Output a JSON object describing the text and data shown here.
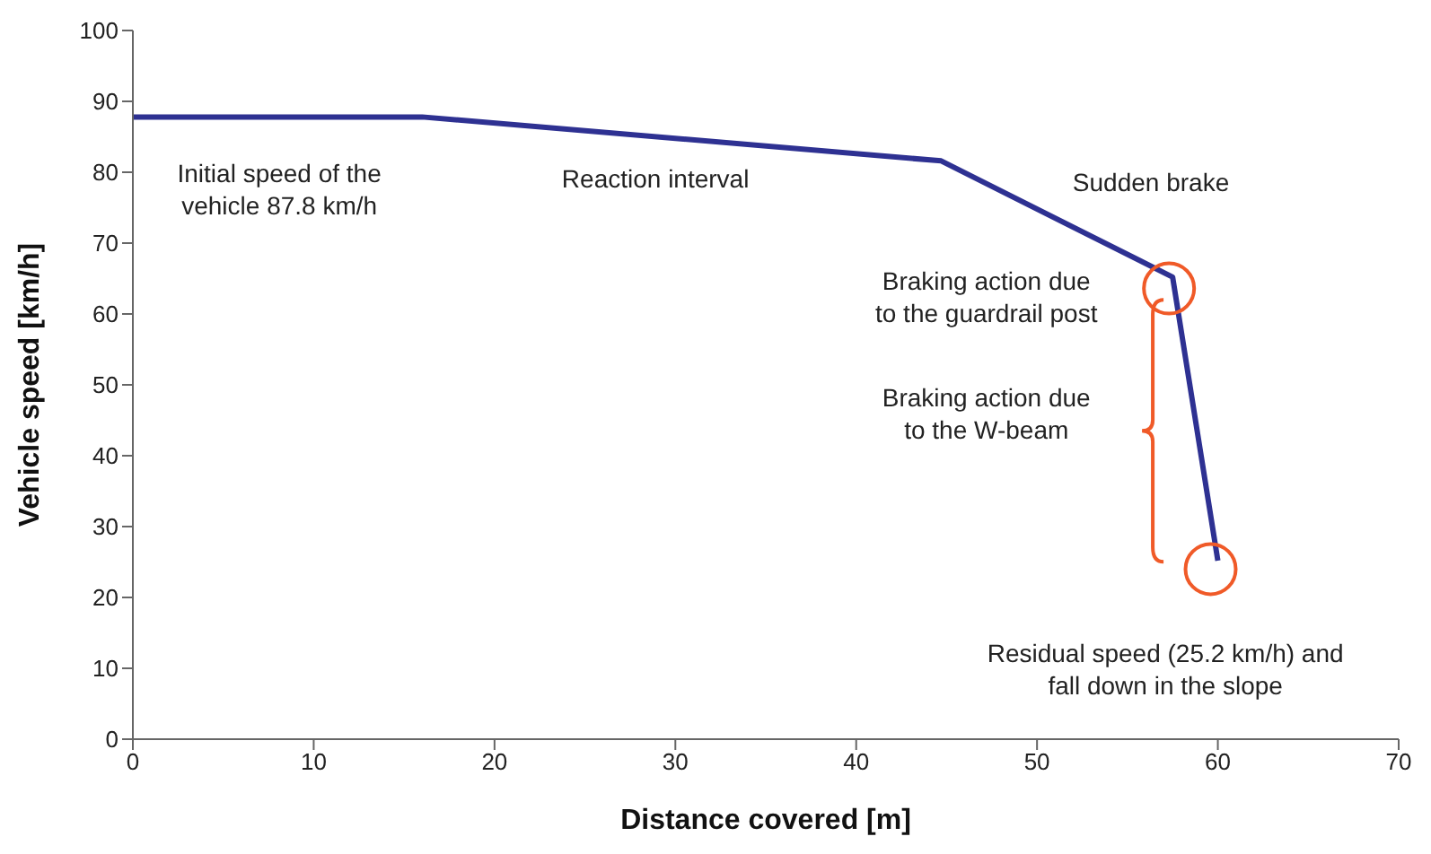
{
  "chart_data": {
    "type": "line",
    "xlabel": "Distance covered [m]",
    "ylabel": "Vehicle speed [km/h]",
    "x": [
      0,
      16,
      44.7,
      57.5,
      60
    ],
    "series": [
      {
        "color": "#2e3192",
        "values": [
          87.8,
          87.8,
          81.6,
          65.2,
          25.2
        ]
      }
    ],
    "xlim": [
      0,
      70
    ],
    "xticks": [
      0,
      10,
      20,
      30,
      40,
      50,
      60,
      70
    ],
    "ylim": [
      0,
      100
    ],
    "yticks": [
      0,
      10,
      20,
      30,
      40,
      50,
      60,
      70,
      80,
      90,
      100
    ],
    "grid": false,
    "legend": false,
    "marker": "none",
    "line_style": "solid",
    "annotations": [
      "Initial speed of the vehicle 87.8 km/h",
      "Reaction interval",
      "Sudden brake",
      "Braking action due to the guardrail post",
      "Braking action due to the W-beam",
      "Residual speed (25.2 km/h) and fall down in the slope"
    ]
  }
}
